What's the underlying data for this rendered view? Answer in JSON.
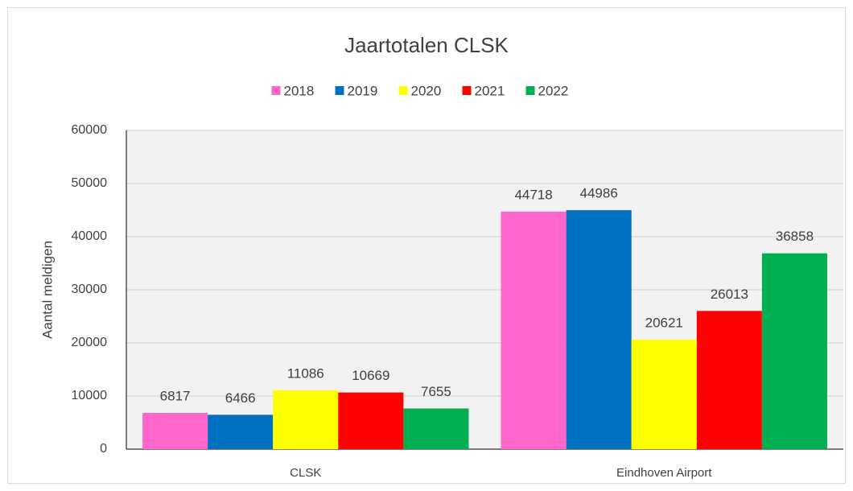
{
  "chart_data": {
    "type": "bar",
    "title": "Jaartotalen CLSK",
    "ylabel": "Aantal meldigen",
    "categories": [
      "CLSK",
      "Eindhoven Airport"
    ],
    "series": [
      {
        "name": "2018",
        "color": "#ff66cc",
        "values": [
          6817,
          44718
        ]
      },
      {
        "name": "2019",
        "color": "#0070c0",
        "values": [
          6466,
          44986
        ]
      },
      {
        "name": "2020",
        "color": "#ffff00",
        "values": [
          11086,
          20621
        ]
      },
      {
        "name": "2021",
        "color": "#ff0000",
        "values": [
          10669,
          26013
        ]
      },
      {
        "name": "2022",
        "color": "#00b050",
        "values": [
          7655,
          36858
        ]
      }
    ],
    "ylim": [
      0,
      60000
    ],
    "yticks": [
      0,
      10000,
      20000,
      30000,
      40000,
      50000,
      60000
    ],
    "grid": true,
    "legend": "top"
  }
}
